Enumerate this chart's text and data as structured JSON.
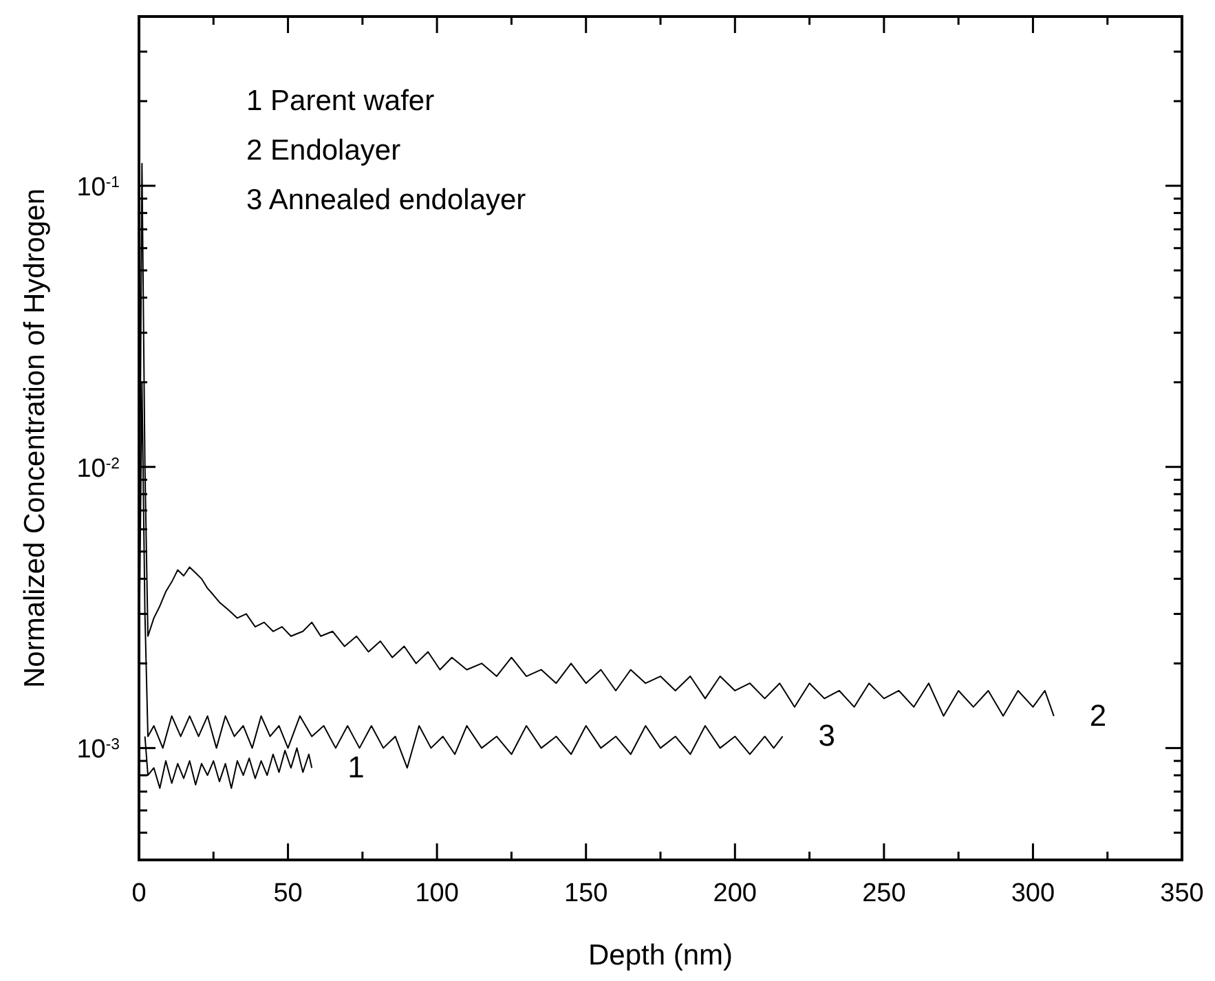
{
  "chart_data": {
    "type": "line",
    "xlabel": "Depth (nm)",
    "ylabel": "Normalized Concentration of Hydrogen",
    "log": "y",
    "marker": "none",
    "line_style": "solid",
    "grid": false,
    "annotations": [
      "1 Parent wafer",
      "2 Endolayer",
      "3 Annealed endolayer"
    ],
    "xlim": [
      0,
      350
    ],
    "ylim": [
      0.0004,
      0.4
    ],
    "xticks": [
      0,
      {
        "value": 25,
        "label": null
      },
      50,
      {
        "value": 75,
        "label": null
      },
      100,
      {
        "value": 125,
        "label": null
      },
      150,
      {
        "value": 175,
        "label": null
      },
      200,
      {
        "value": 225,
        "label": null
      },
      250,
      {
        "value": 275,
        "label": null
      },
      300,
      {
        "value": 325,
        "label": null
      },
      350
    ],
    "yticks": [
      {
        "value": 0.0005,
        "label": null
      },
      {
        "value": 0.0006,
        "label": null
      },
      {
        "value": 0.0007,
        "label": null
      },
      {
        "value": 0.0008,
        "label": null
      },
      {
        "value": 0.0009,
        "label": null
      },
      {
        "value": 0.001,
        "label": "10$^{-3}$"
      },
      {
        "value": 0.002,
        "label": null
      },
      {
        "value": 0.003,
        "label": null
      },
      {
        "value": 0.004,
        "label": null
      },
      {
        "value": 0.005,
        "label": null
      },
      {
        "value": 0.006,
        "label": null
      },
      {
        "value": 0.007,
        "label": null
      },
      {
        "value": 0.008,
        "label": null
      },
      {
        "value": 0.009,
        "label": null
      },
      {
        "value": 0.01,
        "label": "10$^{-2}$"
      },
      {
        "value": 0.02,
        "label": null
      },
      {
        "value": 0.03,
        "label": null
      },
      {
        "value": 0.04,
        "label": null
      },
      {
        "value": 0.05,
        "label": null
      },
      {
        "value": 0.06,
        "label": null
      },
      {
        "value": 0.07,
        "label": null
      },
      {
        "value": 0.08,
        "label": null
      },
      {
        "value": 0.09,
        "label": null
      },
      {
        "value": 0.1,
        "label": "10$^{-1}$"
      },
      {
        "value": 0.2,
        "label": null
      },
      {
        "value": 0.3,
        "label": null
      },
      {
        "value": 0.4,
        "label": null
      }
    ],
    "series": [
      {
        "name": "1",
        "color": "#000000",
        "x": [
          2,
          3,
          5,
          7,
          9,
          11,
          13,
          15,
          17,
          19,
          21,
          23,
          25,
          27,
          29,
          31,
          33,
          35,
          37,
          39,
          41,
          43,
          45,
          47,
          49,
          51,
          53,
          55,
          57,
          58
        ],
        "values": [
          0.0011,
          0.0008,
          0.00085,
          0.00072,
          0.0009,
          0.00075,
          0.00088,
          0.00078,
          0.0009,
          0.00074,
          0.00088,
          0.0008,
          0.0009,
          0.00076,
          0.00088,
          0.00072,
          0.0009,
          0.0008,
          0.00092,
          0.00078,
          0.0009,
          0.0008,
          0.00095,
          0.00082,
          0.00098,
          0.00085,
          0.001,
          0.00082,
          0.00095,
          0.00085
        ]
      },
      {
        "name": "2",
        "color": "#000000",
        "x": [
          0,
          1,
          2,
          3,
          5,
          7,
          9,
          11,
          13,
          15,
          17,
          19,
          21,
          23,
          25,
          27,
          30,
          33,
          36,
          39,
          42,
          45,
          48,
          51,
          55,
          58,
          61,
          65,
          69,
          73,
          77,
          81,
          85,
          89,
          93,
          97,
          101,
          105,
          110,
          115,
          120,
          125,
          130,
          135,
          140,
          145,
          150,
          155,
          160,
          165,
          170,
          175,
          180,
          185,
          190,
          195,
          200,
          205,
          210,
          215,
          220,
          225,
          230,
          235,
          240,
          245,
          250,
          255,
          260,
          265,
          270,
          275,
          280,
          285,
          290,
          295,
          300,
          304,
          307
        ],
        "values": [
          0.003,
          0.12,
          0.01,
          0.0025,
          0.0029,
          0.0032,
          0.0036,
          0.0039,
          0.0043,
          0.0041,
          0.0044,
          0.0042,
          0.004,
          0.0037,
          0.0035,
          0.0033,
          0.0031,
          0.0029,
          0.003,
          0.0027,
          0.0028,
          0.0026,
          0.0027,
          0.0025,
          0.0026,
          0.0028,
          0.0025,
          0.0026,
          0.0023,
          0.0025,
          0.0022,
          0.0024,
          0.0021,
          0.0023,
          0.002,
          0.0022,
          0.0019,
          0.0021,
          0.0019,
          0.002,
          0.0018,
          0.0021,
          0.0018,
          0.0019,
          0.0017,
          0.002,
          0.0017,
          0.0019,
          0.0016,
          0.0019,
          0.0017,
          0.0018,
          0.0016,
          0.0018,
          0.0015,
          0.0018,
          0.0016,
          0.0017,
          0.0015,
          0.0017,
          0.0014,
          0.0017,
          0.0015,
          0.0016,
          0.0014,
          0.0017,
          0.0015,
          0.0016,
          0.0014,
          0.0017,
          0.0013,
          0.0016,
          0.0014,
          0.0016,
          0.0013,
          0.0016,
          0.0014,
          0.0016,
          0.0013
        ]
      },
      {
        "name": "3",
        "color": "#000000",
        "x": [
          0,
          1,
          2,
          3,
          5,
          8,
          11,
          14,
          17,
          20,
          23,
          26,
          29,
          32,
          35,
          38,
          41,
          44,
          47,
          50,
          54,
          58,
          62,
          66,
          70,
          74,
          78,
          82,
          86,
          90,
          94,
          98,
          102,
          106,
          110,
          115,
          120,
          125,
          130,
          135,
          140,
          145,
          150,
          155,
          160,
          165,
          170,
          175,
          180,
          185,
          190,
          195,
          200,
          205,
          210,
          213,
          216
        ],
        "values": [
          0.002,
          0.02,
          0.003,
          0.0011,
          0.0012,
          0.001,
          0.0013,
          0.0011,
          0.0013,
          0.0011,
          0.0013,
          0.001,
          0.0013,
          0.0011,
          0.0012,
          0.001,
          0.0013,
          0.0011,
          0.0012,
          0.001,
          0.0013,
          0.0011,
          0.0012,
          0.001,
          0.0012,
          0.001,
          0.0012,
          0.001,
          0.0011,
          0.00085,
          0.0012,
          0.001,
          0.0011,
          0.00095,
          0.0012,
          0.001,
          0.0011,
          0.00095,
          0.0012,
          0.001,
          0.0011,
          0.00095,
          0.0012,
          0.001,
          0.0011,
          0.00095,
          0.0012,
          0.001,
          0.0011,
          0.00095,
          0.0012,
          0.001,
          0.0011,
          0.00095,
          0.0011,
          0.001,
          0.0011
        ]
      }
    ]
  }
}
